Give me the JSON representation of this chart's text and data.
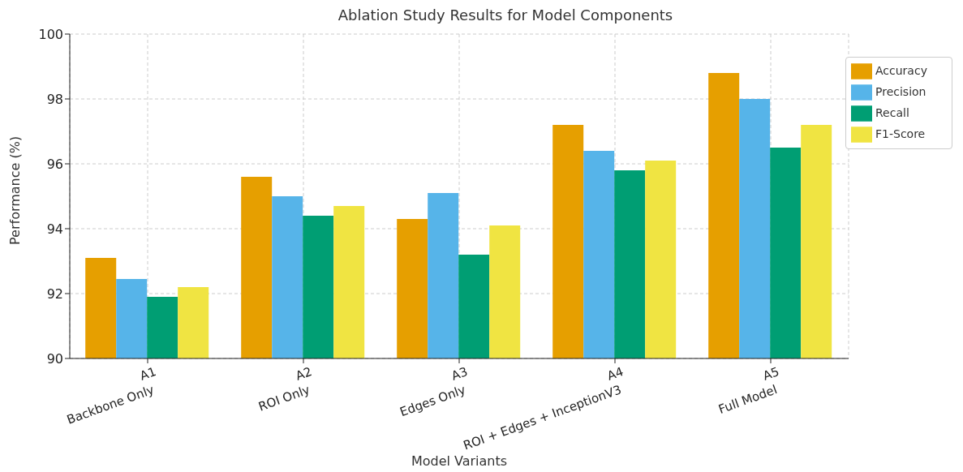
{
  "chart_data": {
    "type": "bar",
    "title": "Ablation Study Results for Model Components",
    "xlabel": "Model Variants",
    "ylabel": "Performance (%)",
    "categories": [
      "A1\nBackbone Only",
      "A2\nROI Only",
      "A3\nEdges Only",
      "A4\nROI + Edges + InceptionV3",
      "A5\nFull Model"
    ],
    "series": [
      {
        "name": "Accuracy",
        "color": "#e69f00",
        "values": [
          93.1,
          95.6,
          94.3,
          97.2,
          98.8
        ]
      },
      {
        "name": "Precision",
        "color": "#56b4e9",
        "values": [
          92.45,
          95.0,
          95.1,
          96.4,
          98.0
        ]
      },
      {
        "name": "Recall",
        "color": "#009e73",
        "values": [
          91.9,
          94.4,
          93.2,
          95.8,
          96.5
        ]
      },
      {
        "name": "F1-Score",
        "color": "#f0e442",
        "values": [
          92.2,
          94.7,
          94.1,
          96.1,
          97.2
        ]
      }
    ],
    "ylim": [
      90,
      100
    ],
    "yticks": [
      90,
      92,
      94,
      96,
      98,
      100
    ],
    "grid": true,
    "legend": "top right"
  }
}
